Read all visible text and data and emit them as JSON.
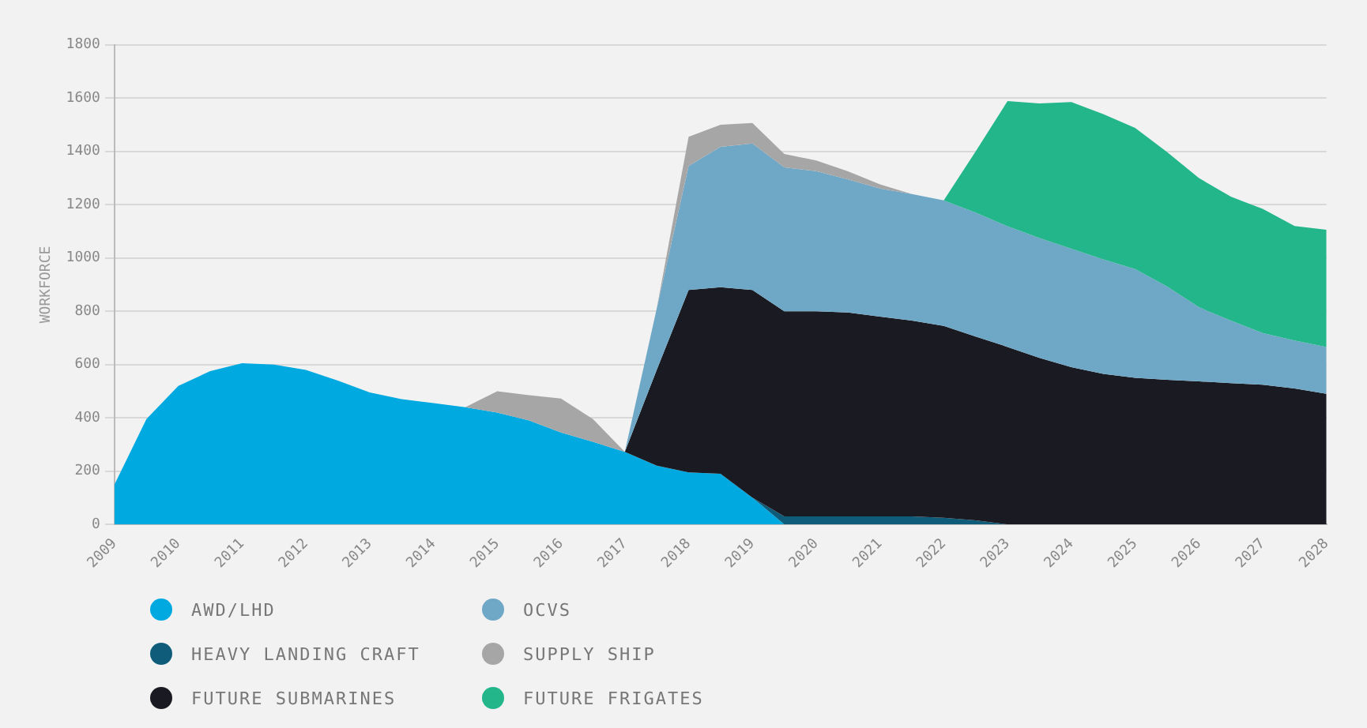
{
  "chart_data": {
    "type": "area",
    "stacked": true,
    "ylabel": "WORKFORCE",
    "x": [
      2009,
      2009.5,
      2010,
      2010.5,
      2011,
      2011.5,
      2012,
      2012.5,
      2013,
      2013.5,
      2014,
      2014.5,
      2015,
      2015.5,
      2016,
      2016.5,
      2017,
      2017.5,
      2018,
      2018.5,
      2019,
      2019.5,
      2020,
      2020.5,
      2021,
      2021.5,
      2022,
      2022.5,
      2023,
      2023.5,
      2024,
      2024.5,
      2025,
      2025.5,
      2026,
      2026.5,
      2027,
      2027.5,
      2028
    ],
    "series": [
      {
        "name": "AWD/LHD",
        "color": "#00a9e0",
        "values": [
          150,
          395,
          520,
          575,
          605,
          600,
          580,
          540,
          495,
          470,
          455,
          440,
          420,
          390,
          345,
          310,
          272,
          220,
          195,
          190,
          100,
          0,
          null,
          null,
          null,
          null,
          null,
          null,
          null,
          null,
          null,
          null,
          null,
          null,
          null,
          null,
          null,
          null,
          null
        ]
      },
      {
        "name": "HEAVY LANDING CRAFT",
        "color": "#0f5c7a",
        "values": [
          null,
          null,
          null,
          null,
          null,
          null,
          null,
          null,
          null,
          null,
          null,
          null,
          null,
          null,
          null,
          null,
          null,
          null,
          null,
          null,
          0,
          30,
          30,
          30,
          30,
          30,
          25,
          15,
          0,
          null,
          null,
          null,
          null,
          null,
          null,
          null,
          null,
          null,
          null
        ]
      },
      {
        "name": "FUTURE SUBMARINES",
        "color": "#1a1a22",
        "values": [
          null,
          null,
          null,
          null,
          null,
          null,
          null,
          null,
          null,
          null,
          null,
          null,
          null,
          null,
          null,
          null,
          0,
          360,
          685,
          700,
          780,
          770,
          770,
          765,
          750,
          735,
          720,
          690,
          666,
          625,
          590,
          565,
          550,
          543,
          537,
          530,
          524,
          510,
          490
        ]
      },
      {
        "name": "OCVS",
        "color": "#6fa8c6",
        "values": [
          null,
          null,
          null,
          null,
          null,
          null,
          null,
          null,
          null,
          null,
          null,
          null,
          null,
          null,
          null,
          null,
          0,
          230,
          465,
          527,
          550,
          540,
          526,
          500,
          481,
          475,
          471,
          465,
          453,
          450,
          445,
          430,
          408,
          350,
          278,
          235,
          194,
          180,
          176
        ]
      },
      {
        "name": "SUPPLY SHIP",
        "color": "#a6a6a6",
        "values": [
          null,
          null,
          null,
          null,
          null,
          null,
          null,
          null,
          null,
          null,
          null,
          0,
          80,
          95,
          127,
          85,
          0,
          0,
          110,
          83,
          77,
          50,
          40,
          30,
          15,
          0,
          null,
          null,
          null,
          null,
          null,
          null,
          null,
          null,
          null,
          null,
          null,
          null,
          null
        ]
      },
      {
        "name": "FUTURE FRIGATES",
        "color": "#22b68a",
        "values": [
          null,
          null,
          null,
          null,
          null,
          null,
          null,
          null,
          null,
          null,
          null,
          null,
          null,
          null,
          null,
          null,
          null,
          null,
          null,
          null,
          null,
          null,
          null,
          null,
          null,
          null,
          0,
          230,
          470,
          505,
          550,
          545,
          530,
          505,
          485,
          465,
          466,
          430,
          440
        ]
      }
    ],
    "xlim": [
      2009,
      2028
    ],
    "xticks": [
      2009,
      2010,
      2011,
      2012,
      2013,
      2014,
      2015,
      2016,
      2017,
      2018,
      2019,
      2020,
      2021,
      2022,
      2023,
      2024,
      2025,
      2026,
      2027,
      2028
    ],
    "ylim": [
      0,
      1800
    ],
    "yticks": [
      0,
      200,
      400,
      600,
      800,
      1000,
      1200,
      1400,
      1600,
      1800
    ],
    "grid": "y",
    "legend": "bottom left"
  }
}
